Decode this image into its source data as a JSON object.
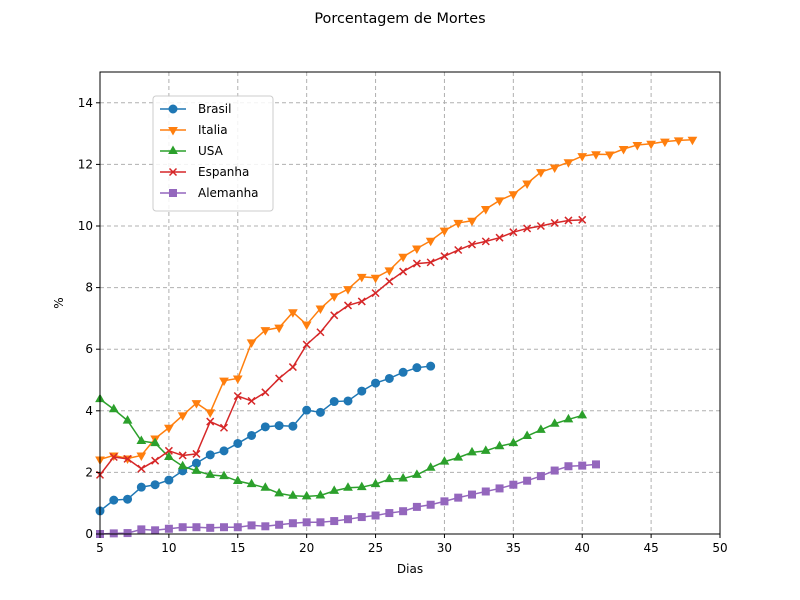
{
  "chart_data": {
    "type": "line",
    "title": "Porcentagem de Mortes",
    "xlabel": "Dias",
    "ylabel": "%",
    "xlim": [
      5,
      50
    ],
    "ylim": [
      0,
      15
    ],
    "xticks": [
      5,
      10,
      15,
      20,
      25,
      30,
      35,
      40,
      45,
      50
    ],
    "yticks": [
      0,
      2,
      4,
      6,
      8,
      10,
      12,
      14
    ],
    "grid": true,
    "legend_position": "upper-left",
    "series": [
      {
        "name": "Brasil",
        "color": "#1f77b4",
        "marker": "circle",
        "x": [
          5,
          6,
          7,
          8,
          9,
          10,
          11,
          12,
          13,
          14,
          15,
          16,
          17,
          18,
          19,
          20,
          21,
          22,
          23,
          24,
          25,
          26,
          27,
          28,
          29
        ],
        "y": [
          0.75,
          1.1,
          1.13,
          1.52,
          1.6,
          1.75,
          2.05,
          2.3,
          2.57,
          2.7,
          2.94,
          3.2,
          3.48,
          3.52,
          3.5,
          4.02,
          3.95,
          4.3,
          4.32,
          4.64,
          4.9,
          5.05,
          5.25,
          5.4,
          5.45
        ]
      },
      {
        "name": "Italia",
        "color": "#ff7f0e",
        "marker": "triangle-down",
        "x": [
          5,
          6,
          7,
          8,
          9,
          10,
          11,
          12,
          13,
          14,
          15,
          16,
          17,
          18,
          19,
          20,
          21,
          22,
          23,
          24,
          25,
          26,
          27,
          28,
          29,
          30,
          31,
          32,
          33,
          34,
          35,
          36,
          37,
          38,
          39,
          40,
          41,
          42,
          43,
          44,
          45,
          46,
          47,
          48
        ],
        "y": [
          2.42,
          2.55,
          2.45,
          2.55,
          3.1,
          3.45,
          3.85,
          4.25,
          3.95,
          4.98,
          5.05,
          6.22,
          6.62,
          6.7,
          7.2,
          6.8,
          7.32,
          7.72,
          7.95,
          8.35,
          8.32,
          8.56,
          9.0,
          9.27,
          9.52,
          9.85,
          10.1,
          10.17,
          10.55,
          10.83,
          11.03,
          11.38,
          11.75,
          11.9,
          12.07,
          12.27,
          12.33,
          12.32,
          12.5,
          12.63,
          12.67,
          12.74,
          12.78,
          12.8
        ]
      },
      {
        "name": "USA",
        "color": "#2ca02c",
        "marker": "triangle-up",
        "x": [
          5,
          6,
          7,
          8,
          9,
          10,
          11,
          12,
          13,
          14,
          15,
          16,
          17,
          18,
          19,
          20,
          21,
          22,
          23,
          24,
          25,
          26,
          27,
          28,
          29,
          30,
          31,
          32,
          33,
          34,
          35,
          36,
          37,
          38,
          39,
          40
        ],
        "y": [
          4.38,
          4.05,
          3.68,
          3.02,
          2.95,
          2.5,
          2.2,
          2.05,
          1.92,
          1.88,
          1.72,
          1.62,
          1.5,
          1.32,
          1.24,
          1.22,
          1.25,
          1.4,
          1.5,
          1.52,
          1.62,
          1.78,
          1.8,
          1.92,
          2.15,
          2.35,
          2.48,
          2.65,
          2.7,
          2.85,
          2.95,
          3.18,
          3.38,
          3.58,
          3.72,
          3.85
        ]
      },
      {
        "name": "Espanha",
        "color": "#d62728",
        "marker": "x",
        "x": [
          5,
          6,
          7,
          8,
          9,
          10,
          11,
          12,
          13,
          14,
          15,
          16,
          17,
          18,
          19,
          20,
          21,
          22,
          23,
          24,
          25,
          26,
          27,
          28,
          29,
          30,
          31,
          32,
          33,
          34,
          35,
          36,
          37,
          38,
          39,
          40
        ],
        "y": [
          1.92,
          2.5,
          2.44,
          2.12,
          2.38,
          2.7,
          2.55,
          2.6,
          3.65,
          3.45,
          4.48,
          4.32,
          4.6,
          5.05,
          5.42,
          6.15,
          6.55,
          7.1,
          7.42,
          7.55,
          7.82,
          8.2,
          8.52,
          8.78,
          8.82,
          9.02,
          9.22,
          9.4,
          9.5,
          9.62,
          9.8,
          9.92,
          10.0,
          10.1,
          10.18,
          10.2
        ]
      },
      {
        "name": "Alemanha",
        "color": "#9467bd",
        "marker": "square",
        "x": [
          5,
          6,
          7,
          8,
          9,
          10,
          11,
          12,
          13,
          14,
          15,
          16,
          17,
          18,
          19,
          20,
          21,
          22,
          23,
          24,
          25,
          26,
          27,
          28,
          29,
          30,
          31,
          32,
          33,
          34,
          35,
          36,
          37,
          38,
          39,
          40,
          41
        ],
        "y": [
          0.0,
          0.02,
          0.03,
          0.15,
          0.12,
          0.17,
          0.22,
          0.22,
          0.2,
          0.22,
          0.22,
          0.28,
          0.25,
          0.3,
          0.35,
          0.38,
          0.38,
          0.42,
          0.48,
          0.55,
          0.6,
          0.68,
          0.74,
          0.88,
          0.95,
          1.06,
          1.18,
          1.28,
          1.38,
          1.48,
          1.6,
          1.73,
          1.88,
          2.06,
          2.2,
          2.22,
          2.26
        ]
      }
    ]
  }
}
